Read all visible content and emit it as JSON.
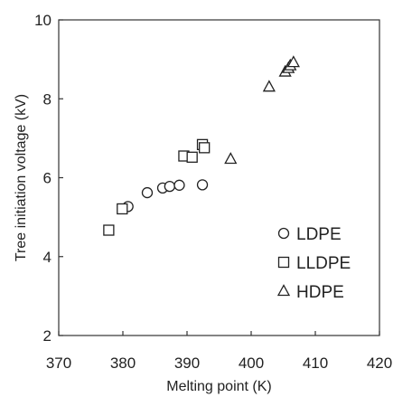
{
  "chart_data": {
    "type": "scatter",
    "title": "",
    "xlabel": "Melting point (K)",
    "ylabel": "Tree initiation voltage (kV)",
    "xlim": [
      370,
      420
    ],
    "ylim": [
      2,
      10
    ],
    "xticks": [
      370,
      380,
      390,
      400,
      410,
      420
    ],
    "yticks": [
      2,
      4,
      6,
      8,
      10
    ],
    "grid": false,
    "legend_position": "bottom-right",
    "series": [
      {
        "name": "LDPE",
        "marker": "circle",
        "points": [
          {
            "x": 380.8,
            "y": 5.27
          },
          {
            "x": 383.8,
            "y": 5.62
          },
          {
            "x": 386.2,
            "y": 5.74
          },
          {
            "x": 387.3,
            "y": 5.78
          },
          {
            "x": 388.8,
            "y": 5.81
          },
          {
            "x": 392.4,
            "y": 5.82
          }
        ]
      },
      {
        "name": "LLDPE",
        "marker": "square",
        "points": [
          {
            "x": 377.8,
            "y": 4.67
          },
          {
            "x": 379.9,
            "y": 5.21
          },
          {
            "x": 389.5,
            "y": 6.55
          },
          {
            "x": 390.8,
            "y": 6.52
          },
          {
            "x": 392.4,
            "y": 6.84
          },
          {
            "x": 392.7,
            "y": 6.76
          }
        ]
      },
      {
        "name": "HDPE",
        "marker": "triangle",
        "points": [
          {
            "x": 396.8,
            "y": 6.47
          },
          {
            "x": 402.8,
            "y": 8.3
          },
          {
            "x": 405.3,
            "y": 8.68
          },
          {
            "x": 405.8,
            "y": 8.77
          },
          {
            "x": 406.1,
            "y": 8.84
          },
          {
            "x": 406.6,
            "y": 8.92
          }
        ]
      }
    ]
  }
}
